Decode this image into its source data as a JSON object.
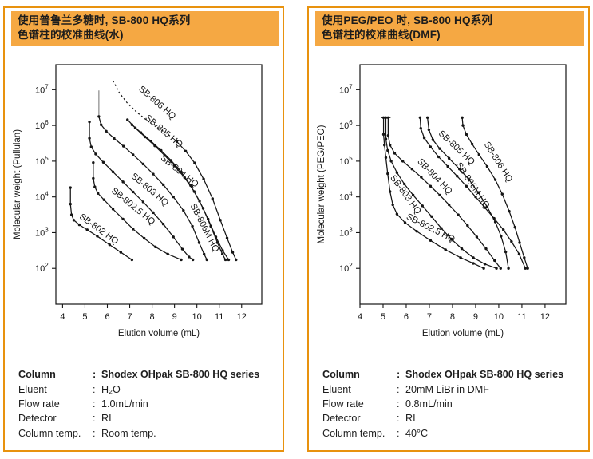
{
  "colors": {
    "panel_border": "#E8920E",
    "header_bg": "#F5A843",
    "ink": "#151515",
    "gray_head": "#9a9a9a"
  },
  "sep": ":",
  "panels": [
    {
      "header_line1": "使用普鲁兰多糖时, SB-800 HQ系列",
      "header_line2": "色谱柱的校准曲线(水)",
      "specs": [
        {
          "label": "Column",
          "value": "Shodex OHpak SB-800 HQ series"
        },
        {
          "label": "Eluent",
          "value": "H₂O"
        },
        {
          "label": "Flow rate",
          "value": "1.0mL/min"
        },
        {
          "label": "Detector",
          "value": "RI"
        },
        {
          "label": "Column temp.",
          "value": "Room temp."
        }
      ]
    },
    {
      "header_line1": "使用PEG/PEO 时, SB-800 HQ系列",
      "header_line2": "色谱柱的校准曲线(DMF)",
      "specs": [
        {
          "label": "Column",
          "value": "Shodex OHpak SB-800 HQ series"
        },
        {
          "label": "Eluent",
          "value": "20mM LiBr in DMF"
        },
        {
          "label": "Flow rate",
          "value": "0.8mL/min"
        },
        {
          "label": "Detector",
          "value": "RI"
        },
        {
          "label": "Column temp.",
          "value": "40°C"
        }
      ]
    }
  ],
  "chart_data": [
    {
      "type": "line",
      "title": "SB-800 HQ series calibration curves with pullulan (water)",
      "xlabel": "Elution volume (mL)",
      "ylabel": "Molecular weight (Pullulan)",
      "xlim": [
        3.7,
        12.9
      ],
      "ylog_lim": [
        1,
        7.7
      ],
      "x_ticks": [
        4,
        5,
        6,
        7,
        8,
        9,
        10,
        11,
        12
      ],
      "y_tick_exponents": [
        2,
        3,
        4,
        5,
        6,
        7
      ],
      "grid": false,
      "legend": "labels-along-curves",
      "series": [
        {
          "name": "SB-802 HQ",
          "label_x": 5.55,
          "label_logy": 3.04,
          "label_rot": 36,
          "points": [
            [
              4.35,
              4.26
            ],
            [
              4.35,
              3.8
            ],
            [
              4.4,
              3.5
            ],
            [
              4.5,
              3.35
            ],
            [
              4.75,
              3.22
            ],
            [
              5.1,
              3.08
            ],
            [
              5.55,
              2.9
            ],
            [
              6.1,
              2.66
            ],
            [
              6.6,
              2.45
            ],
            [
              7.1,
              2.24
            ]
          ]
        },
        {
          "name": "SB-802.5 HQ",
          "label_x": 7.08,
          "label_logy": 3.68,
          "label_rot": 39,
          "points": [
            [
              5.37,
              4.96
            ],
            [
              5.37,
              4.52
            ],
            [
              5.44,
              4.28
            ],
            [
              5.58,
              4.1
            ],
            [
              5.85,
              3.92
            ],
            [
              6.25,
              3.66
            ],
            [
              6.7,
              3.38
            ],
            [
              7.15,
              3.1
            ],
            [
              7.65,
              2.84
            ],
            [
              8.15,
              2.6
            ],
            [
              8.7,
              2.4
            ],
            [
              9.3,
              2.24
            ]
          ]
        },
        {
          "name": "SB-803 HQ",
          "label_x": 7.82,
          "label_logy": 4.15,
          "label_rot": 40,
          "points": [
            [
              5.2,
              6.1
            ],
            [
              5.2,
              5.64
            ],
            [
              5.28,
              5.4
            ],
            [
              5.48,
              5.2
            ],
            [
              5.82,
              4.97
            ],
            [
              6.25,
              4.7
            ],
            [
              6.7,
              4.42
            ],
            [
              7.15,
              4.14
            ],
            [
              7.6,
              3.86
            ],
            [
              8.05,
              3.56
            ],
            [
              8.5,
              3.24
            ],
            [
              8.95,
              2.88
            ],
            [
              9.35,
              2.54
            ],
            [
              9.65,
              2.32
            ],
            [
              9.82,
              2.24
            ]
          ]
        },
        {
          "name": "SB-804 HQ",
          "label_x": 9.15,
          "label_logy": 4.66,
          "label_rot": 39,
          "head": [
            [
              5.62,
              6.98
            ],
            [
              5.62,
              6.25
            ]
          ],
          "points": [
            [
              5.62,
              6.25
            ],
            [
              5.72,
              6.02
            ],
            [
              5.95,
              5.84
            ],
            [
              6.3,
              5.64
            ],
            [
              6.72,
              5.42
            ],
            [
              7.15,
              5.18
            ],
            [
              7.6,
              4.92
            ],
            [
              8.05,
              4.64
            ],
            [
              8.5,
              4.34
            ],
            [
              8.95,
              4.0
            ],
            [
              9.4,
              3.62
            ],
            [
              9.8,
              3.18
            ],
            [
              10.1,
              2.72
            ],
            [
              10.32,
              2.4
            ],
            [
              10.45,
              2.24
            ]
          ]
        },
        {
          "name": "SB-805 HQ",
          "label_x": 8.45,
          "label_logy": 5.78,
          "label_rot": 40,
          "points": [
            [
              6.9,
              6.16
            ],
            [
              7.25,
              5.93
            ],
            [
              7.68,
              5.68
            ],
            [
              8.12,
              5.43
            ],
            [
              8.56,
              5.16
            ],
            [
              9.0,
              4.87
            ],
            [
              9.45,
              4.54
            ],
            [
              9.88,
              4.15
            ],
            [
              10.28,
              3.68
            ],
            [
              10.62,
              3.18
            ],
            [
              10.92,
              2.72
            ],
            [
              11.14,
              2.4
            ],
            [
              11.28,
              2.24
            ]
          ]
        },
        {
          "name": "SB-806 HQ",
          "label_x": 8.15,
          "label_logy": 6.58,
          "label_rot": 41,
          "split_idx": 7,
          "marker_from": 7,
          "points": [
            [
              6.25,
              7.25
            ],
            [
              6.55,
              6.9
            ],
            [
              6.9,
              6.62
            ],
            [
              7.3,
              6.38
            ],
            [
              7.75,
              6.15
            ],
            [
              8.2,
              5.95
            ],
            [
              8.65,
              5.78
            ],
            [
              9.1,
              5.55
            ],
            [
              9.5,
              5.28
            ],
            [
              9.9,
              4.95
            ],
            [
              10.3,
              4.5
            ],
            [
              10.7,
              3.95
            ],
            [
              11.05,
              3.35
            ],
            [
              11.35,
              2.85
            ],
            [
              11.6,
              2.45
            ],
            [
              11.75,
              2.24
            ]
          ]
        },
        {
          "name": "SB-806M HQ",
          "label_x": 10.24,
          "label_logy": 3.1,
          "label_rot": 63,
          "points": [
            [
              7.1,
              6.02
            ],
            [
              7.5,
              5.8
            ],
            [
              7.95,
              5.56
            ],
            [
              8.4,
              5.3
            ],
            [
              8.85,
              5.02
            ],
            [
              9.3,
              4.7
            ],
            [
              9.72,
              4.32
            ],
            [
              10.12,
              3.88
            ],
            [
              10.5,
              3.38
            ],
            [
              10.85,
              2.88
            ],
            [
              11.15,
              2.5
            ],
            [
              11.42,
              2.24
            ]
          ]
        }
      ]
    },
    {
      "type": "line",
      "title": "SB-800 HQ series calibration curves with PEG/PEO (DMF)",
      "xlabel": "Elution volume (mL)",
      "ylabel": "Molecular weight (PEG/PEO)",
      "xlim": [
        4,
        12.9
      ],
      "ylog_lim": [
        1,
        7.7
      ],
      "x_ticks": [
        4,
        5,
        6,
        7,
        8,
        9,
        10,
        11,
        12
      ],
      "y_tick_exponents": [
        2,
        3,
        4,
        5,
        6,
        7
      ],
      "grid": false,
      "legend": "labels-along-curves",
      "series": [
        {
          "name": "SB-802.5 HQ",
          "label_x": 7.0,
          "label_logy": 3.06,
          "label_rot": 27,
          "cap": true,
          "points": [
            [
              5.02,
              6.22
            ],
            [
              5.02,
              5.75
            ],
            [
              5.06,
              5.45
            ],
            [
              5.12,
              5.1
            ],
            [
              5.2,
              4.65
            ],
            [
              5.3,
              4.15
            ],
            [
              5.42,
              3.78
            ],
            [
              5.6,
              3.52
            ],
            [
              5.95,
              3.28
            ],
            [
              6.45,
              3.04
            ],
            [
              7.05,
              2.78
            ],
            [
              7.7,
              2.52
            ],
            [
              8.35,
              2.3
            ],
            [
              8.9,
              2.14
            ],
            [
              9.35,
              2.0
            ]
          ]
        },
        {
          "name": "SB-803 HQ",
          "label_x": 5.88,
          "label_logy": 4.02,
          "label_rot": 54,
          "cap": true,
          "points": [
            [
              5.12,
              6.22
            ],
            [
              5.12,
              5.62
            ],
            [
              5.2,
              5.3
            ],
            [
              5.35,
              5.0
            ],
            [
              5.6,
              4.68
            ],
            [
              5.92,
              4.36
            ],
            [
              6.3,
              4.05
            ],
            [
              6.7,
              3.75
            ],
            [
              7.1,
              3.45
            ],
            [
              7.52,
              3.12
            ],
            [
              7.95,
              2.82
            ],
            [
              8.4,
              2.55
            ],
            [
              8.9,
              2.3
            ],
            [
              9.4,
              2.12
            ],
            [
              9.9,
              2.0
            ]
          ]
        },
        {
          "name": "SB-804 HQ",
          "label_x": 7.15,
          "label_logy": 4.52,
          "label_rot": 46,
          "cap": true,
          "points": [
            [
              5.22,
              6.22
            ],
            [
              5.22,
              5.72
            ],
            [
              5.3,
              5.45
            ],
            [
              5.5,
              5.22
            ],
            [
              5.85,
              5.0
            ],
            [
              6.25,
              4.78
            ],
            [
              6.65,
              4.55
            ],
            [
              7.05,
              4.3
            ],
            [
              7.45,
              4.05
            ],
            [
              7.85,
              3.78
            ],
            [
              8.25,
              3.5
            ],
            [
              8.65,
              3.2
            ],
            [
              9.05,
              2.88
            ],
            [
              9.45,
              2.55
            ],
            [
              9.82,
              2.22
            ],
            [
              10.08,
              2.0
            ]
          ]
        },
        {
          "name": "SB-805 HQ",
          "label_x": 8.1,
          "label_logy": 5.32,
          "label_rot": 43,
          "points": [
            [
              6.6,
              6.22
            ],
            [
              6.63,
              5.92
            ],
            [
              6.78,
              5.65
            ],
            [
              7.05,
              5.4
            ],
            [
              7.4,
              5.12
            ],
            [
              7.8,
              4.85
            ],
            [
              8.2,
              4.58
            ],
            [
              8.6,
              4.3
            ],
            [
              9.0,
              4.0
            ],
            [
              9.4,
              3.7
            ],
            [
              9.8,
              3.4
            ],
            [
              10.2,
              3.08
            ],
            [
              10.55,
              2.75
            ],
            [
              10.88,
              2.4
            ],
            [
              11.15,
              2.0
            ]
          ]
        },
        {
          "name": "SB-806M HQ",
          "label_x": 8.78,
          "label_logy": 4.28,
          "label_rot": 56,
          "points": [
            [
              6.92,
              6.22
            ],
            [
              6.98,
              5.88
            ],
            [
              7.15,
              5.6
            ],
            [
              7.45,
              5.35
            ],
            [
              7.85,
              5.08
            ],
            [
              8.3,
              4.78
            ],
            [
              8.72,
              4.48
            ],
            [
              9.12,
              4.12
            ],
            [
              9.5,
              3.72
            ],
            [
              9.85,
              3.3
            ],
            [
              10.1,
              2.9
            ],
            [
              10.3,
              2.46
            ],
            [
              10.42,
              2.0
            ]
          ]
        },
        {
          "name": "SB-806 HQ",
          "label_x": 9.88,
          "label_logy": 4.94,
          "label_rot": 58,
          "points": [
            [
              8.42,
              6.22
            ],
            [
              8.45,
              6.0
            ],
            [
              8.6,
              5.75
            ],
            [
              8.85,
              5.48
            ],
            [
              9.15,
              5.18
            ],
            [
              9.5,
              4.85
            ],
            [
              9.85,
              4.48
            ],
            [
              10.15,
              4.08
            ],
            [
              10.45,
              3.6
            ],
            [
              10.7,
              3.15
            ],
            [
              10.9,
              2.72
            ],
            [
              11.1,
              2.3
            ],
            [
              11.25,
              2.0
            ]
          ]
        }
      ]
    }
  ]
}
